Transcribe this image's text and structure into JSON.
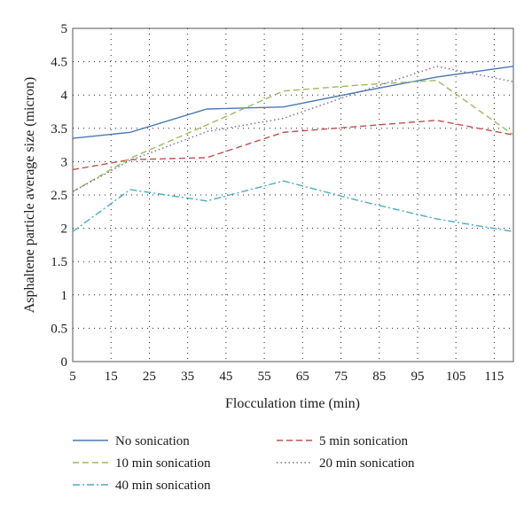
{
  "chart_data": {
    "type": "line",
    "title": "",
    "xlabel": "Flocculation time (min)",
    "ylabel": "Asphaltene particle average size (micron)",
    "xlim": [
      5,
      120
    ],
    "ylim": [
      0,
      5
    ],
    "xticks": [
      "5",
      "15",
      "25",
      "35",
      "45",
      "55",
      "65",
      "75",
      "85",
      "95",
      "105",
      "115"
    ],
    "yticks": [
      "0",
      "0.5",
      "1",
      "1.5",
      "2",
      "2.5",
      "3",
      "3.5",
      "4",
      "4.5",
      "5"
    ],
    "grid": true,
    "legend_position": "bottom",
    "series": [
      {
        "name": "No sonication",
        "color": "#4a7ab5",
        "dash": "solid",
        "x": [
          5,
          20,
          40,
          60,
          80,
          100,
          120
        ],
        "y": [
          3.35,
          3.44,
          3.79,
          3.82,
          4.05,
          4.27,
          4.43
        ]
      },
      {
        "name": "5 min sonication",
        "color": "#c0504d",
        "dash": "dashed",
        "x": [
          5,
          20,
          40,
          60,
          80,
          100,
          120
        ],
        "y": [
          2.88,
          3.03,
          3.06,
          3.44,
          3.53,
          3.62,
          3.4
        ]
      },
      {
        "name": "10 min sonication",
        "color": "#9bbb59",
        "dash": "dashed",
        "x": [
          5,
          20,
          40,
          60,
          80,
          100,
          120
        ],
        "y": [
          2.55,
          3.05,
          3.55,
          4.06,
          4.15,
          4.22,
          3.4
        ]
      },
      {
        "name": "20 min sonication",
        "color": "#8064a2",
        "dash": "dotted",
        "x": [
          5,
          20,
          40,
          60,
          80,
          100,
          120
        ],
        "y": [
          2.55,
          3.02,
          3.45,
          3.65,
          4.05,
          4.43,
          4.2
        ]
      },
      {
        "name": "40 min sonication",
        "color": "#4bacc6",
        "dash": "dashdot",
        "x": [
          5,
          20,
          40,
          60,
          80,
          100,
          120
        ],
        "y": [
          1.95,
          2.58,
          2.41,
          2.71,
          2.41,
          2.14,
          1.95
        ]
      }
    ]
  }
}
